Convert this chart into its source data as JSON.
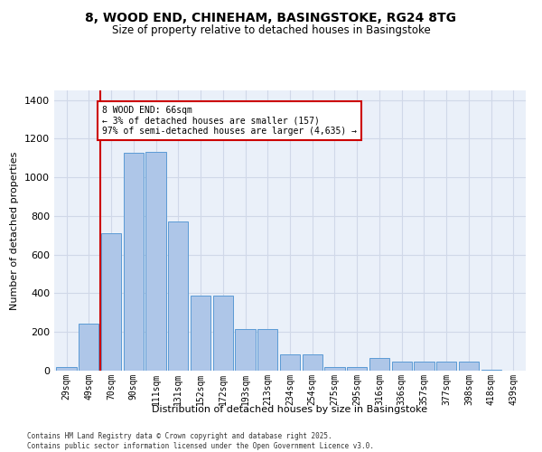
{
  "title_line1": "8, WOOD END, CHINEHAM, BASINGSTOKE, RG24 8TG",
  "title_line2": "Size of property relative to detached houses in Basingstoke",
  "xlabel": "Distribution of detached houses by size in Basingstoke",
  "ylabel": "Number of detached properties",
  "categories": [
    "29sqm",
    "49sqm",
    "70sqm",
    "90sqm",
    "111sqm",
    "131sqm",
    "152sqm",
    "172sqm",
    "193sqm",
    "213sqm",
    "234sqm",
    "254sqm",
    "275sqm",
    "295sqm",
    "316sqm",
    "336sqm",
    "357sqm",
    "377sqm",
    "398sqm",
    "418sqm",
    "439sqm"
  ],
  "values": [
    20,
    245,
    710,
    1125,
    1130,
    770,
    390,
    390,
    215,
    215,
    85,
    85,
    20,
    20,
    65,
    45,
    45,
    45,
    45,
    5,
    0
  ],
  "bar_color": "#aec6e8",
  "bar_edge_color": "#5b9bd5",
  "grid_color": "#d0d8e8",
  "background_color": "#eaf0f9",
  "vline_color": "#cc0000",
  "vline_x": 1.5,
  "annotation_text": "8 WOOD END: 66sqm\n← 3% of detached houses are smaller (157)\n97% of semi-detached houses are larger (4,635) →",
  "annotation_box_color": "#ffffff",
  "annotation_box_edge": "#cc0000",
  "ylim": [
    0,
    1450
  ],
  "yticks": [
    0,
    200,
    400,
    600,
    800,
    1000,
    1200,
    1400
  ],
  "footer_line1": "Contains HM Land Registry data © Crown copyright and database right 2025.",
  "footer_line2": "Contains public sector information licensed under the Open Government Licence v3.0."
}
